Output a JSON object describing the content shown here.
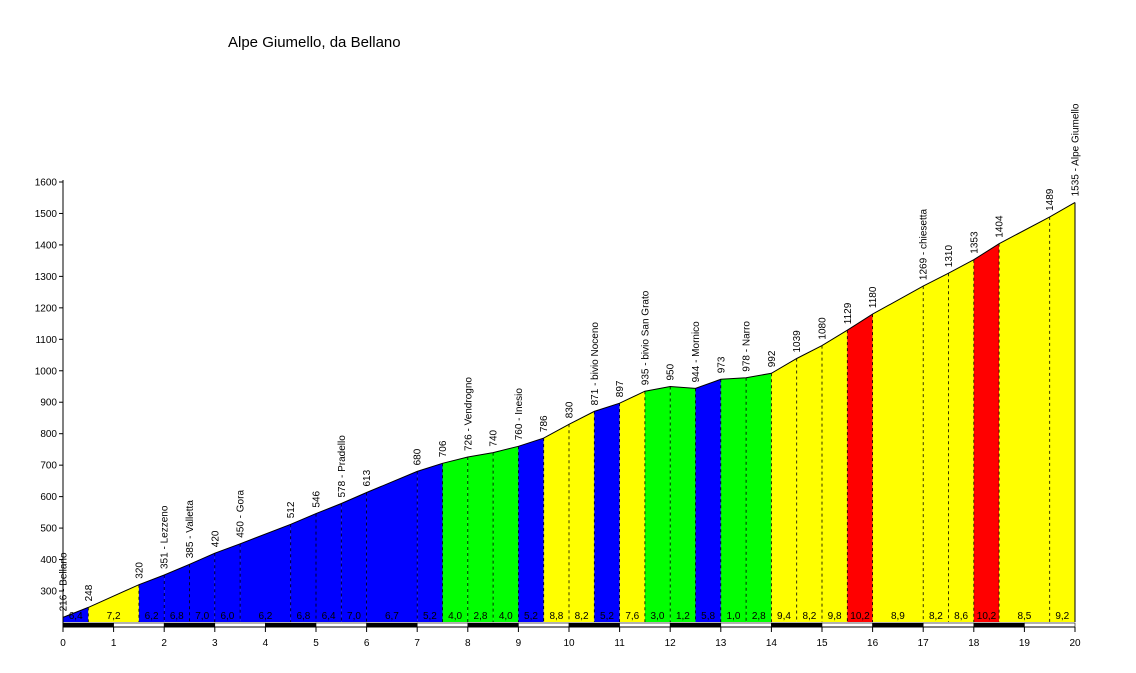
{
  "chart_data": {
    "type": "area",
    "title": "Alpe Giumello, da Bellano",
    "xlabel": "",
    "ylabel": "",
    "xlim": [
      0,
      20
    ],
    "ylim": [
      200,
      1600
    ],
    "x_ticks": [
      0,
      1,
      2,
      3,
      4,
      5,
      6,
      7,
      8,
      9,
      10,
      11,
      12,
      13,
      14,
      15,
      16,
      17,
      18,
      19,
      20
    ],
    "y_ticks": [
      300,
      400,
      500,
      600,
      700,
      800,
      900,
      1000,
      1100,
      1200,
      1300,
      1400,
      1500,
      1600
    ],
    "grid": false,
    "colors": {
      "blue": "#0000ff",
      "yellow": "#ffff00",
      "green": "#00ff00",
      "red": "#ff0000",
      "outline": "#000000"
    },
    "profile": [
      {
        "x": 0,
        "y": 216
      },
      {
        "x": 0.5,
        "y": 248
      },
      {
        "x": 1.5,
        "y": 320
      },
      {
        "x": 2.0,
        "y": 351
      },
      {
        "x": 2.5,
        "y": 385
      },
      {
        "x": 3.0,
        "y": 420
      },
      {
        "x": 3.5,
        "y": 450
      },
      {
        "x": 4.5,
        "y": 512
      },
      {
        "x": 5.0,
        "y": 546
      },
      {
        "x": 5.5,
        "y": 578
      },
      {
        "x": 6.0,
        "y": 613
      },
      {
        "x": 7.0,
        "y": 680
      },
      {
        "x": 7.5,
        "y": 706
      },
      {
        "x": 8.0,
        "y": 726
      },
      {
        "x": 8.5,
        "y": 740
      },
      {
        "x": 9.0,
        "y": 760
      },
      {
        "x": 9.5,
        "y": 786
      },
      {
        "x": 10.0,
        "y": 830
      },
      {
        "x": 10.5,
        "y": 871
      },
      {
        "x": 11.0,
        "y": 897
      },
      {
        "x": 11.5,
        "y": 935
      },
      {
        "x": 12.0,
        "y": 950
      },
      {
        "x": 12.5,
        "y": 944
      },
      {
        "x": 13.0,
        "y": 973
      },
      {
        "x": 13.5,
        "y": 978
      },
      {
        "x": 14.0,
        "y": 992
      },
      {
        "x": 14.5,
        "y": 1039
      },
      {
        "x": 15.0,
        "y": 1080
      },
      {
        "x": 15.5,
        "y": 1129
      },
      {
        "x": 16.0,
        "y": 1180
      },
      {
        "x": 17.0,
        "y": 1269
      },
      {
        "x": 17.5,
        "y": 1310
      },
      {
        "x": 18.0,
        "y": 1353
      },
      {
        "x": 18.5,
        "y": 1404
      },
      {
        "x": 19.5,
        "y": 1489
      },
      {
        "x": 20.0,
        "y": 1535
      }
    ],
    "segments": [
      {
        "x0": 0,
        "x1": 0.5,
        "color": "blue",
        "gradient": "6,4"
      },
      {
        "x0": 0.5,
        "x1": 1.5,
        "color": "yellow",
        "gradient": "7,2"
      },
      {
        "x0": 1.5,
        "x1": 2.0,
        "color": "blue",
        "gradient": "6,2"
      },
      {
        "x0": 2.0,
        "x1": 2.5,
        "color": "blue",
        "gradient": "6,8"
      },
      {
        "x0": 2.5,
        "x1": 3.0,
        "color": "blue",
        "gradient": "7,0"
      },
      {
        "x0": 3.0,
        "x1": 3.5,
        "color": "blue",
        "gradient": "6,0"
      },
      {
        "x0": 3.5,
        "x1": 4.5,
        "color": "blue",
        "gradient": "6,2"
      },
      {
        "x0": 4.5,
        "x1": 5.0,
        "color": "blue",
        "gradient": "6,8"
      },
      {
        "x0": 5.0,
        "x1": 5.5,
        "color": "blue",
        "gradient": "6,4"
      },
      {
        "x0": 5.5,
        "x1": 6.0,
        "color": "blue",
        "gradient": "7,0"
      },
      {
        "x0": 6.0,
        "x1": 7.0,
        "color": "blue",
        "gradient": "6,7"
      },
      {
        "x0": 7.0,
        "x1": 7.5,
        "color": "blue",
        "gradient": "5,2"
      },
      {
        "x0": 7.5,
        "x1": 8.0,
        "color": "green",
        "gradient": "4,0"
      },
      {
        "x0": 8.0,
        "x1": 8.5,
        "color": "green",
        "gradient": "2,8"
      },
      {
        "x0": 8.5,
        "x1": 9.0,
        "color": "green",
        "gradient": "4,0"
      },
      {
        "x0": 9.0,
        "x1": 9.5,
        "color": "blue",
        "gradient": "5,2"
      },
      {
        "x0": 9.5,
        "x1": 10.0,
        "color": "yellow",
        "gradient": "8,8"
      },
      {
        "x0": 10.0,
        "x1": 10.5,
        "color": "yellow",
        "gradient": "8,2"
      },
      {
        "x0": 10.5,
        "x1": 11.0,
        "color": "blue",
        "gradient": "5,2"
      },
      {
        "x0": 11.0,
        "x1": 11.5,
        "color": "yellow",
        "gradient": "7,6"
      },
      {
        "x0": 11.5,
        "x1": 12.0,
        "color": "green",
        "gradient": "3,0"
      },
      {
        "x0": 12.0,
        "x1": 12.5,
        "color": "green",
        "gradient": "1,2"
      },
      {
        "x0": 12.5,
        "x1": 13.0,
        "color": "blue",
        "gradient": "5,8"
      },
      {
        "x0": 13.0,
        "x1": 13.5,
        "color": "green",
        "gradient": "1,0"
      },
      {
        "x0": 13.5,
        "x1": 14.0,
        "color": "green",
        "gradient": "2,8"
      },
      {
        "x0": 14.0,
        "x1": 14.5,
        "color": "yellow",
        "gradient": "9,4"
      },
      {
        "x0": 14.5,
        "x1": 15.0,
        "color": "yellow",
        "gradient": "8,2"
      },
      {
        "x0": 15.0,
        "x1": 15.5,
        "color": "yellow",
        "gradient": "9,8"
      },
      {
        "x0": 15.5,
        "x1": 16.0,
        "color": "red",
        "gradient": "10,2"
      },
      {
        "x0": 16.0,
        "x1": 17.0,
        "color": "yellow",
        "gradient": "8,9"
      },
      {
        "x0": 17.0,
        "x1": 17.5,
        "color": "yellow",
        "gradient": "8,2"
      },
      {
        "x0": 17.5,
        "x1": 18.0,
        "color": "yellow",
        "gradient": "8,6"
      },
      {
        "x0": 18.0,
        "x1": 18.5,
        "color": "red",
        "gradient": "10,2"
      },
      {
        "x0": 18.5,
        "x1": 19.5,
        "color": "yellow",
        "gradient": "8,5"
      },
      {
        "x0": 19.5,
        "x1": 20.0,
        "color": "yellow",
        "gradient": "9,2"
      }
    ],
    "annotations": [
      {
        "x": 0,
        "label": "216 - Bellano"
      },
      {
        "x": 0.5,
        "label": "248"
      },
      {
        "x": 1.5,
        "label": "320"
      },
      {
        "x": 2.0,
        "label": "351 - Lezzeno"
      },
      {
        "x": 2.5,
        "label": "385 - Valletta"
      },
      {
        "x": 3.0,
        "label": "420"
      },
      {
        "x": 3.5,
        "label": "450 - Gora"
      },
      {
        "x": 4.5,
        "label": "512"
      },
      {
        "x": 5.0,
        "label": "546"
      },
      {
        "x": 5.5,
        "label": "578 - Pradello"
      },
      {
        "x": 6.0,
        "label": "613"
      },
      {
        "x": 7.0,
        "label": "680"
      },
      {
        "x": 7.5,
        "label": "706"
      },
      {
        "x": 8.0,
        "label": "726 - Vendrogno"
      },
      {
        "x": 8.5,
        "label": "740"
      },
      {
        "x": 9.0,
        "label": "760 - Inesio"
      },
      {
        "x": 9.5,
        "label": "786"
      },
      {
        "x": 10.0,
        "label": "830"
      },
      {
        "x": 10.5,
        "label": "871 - bivio Noceno"
      },
      {
        "x": 11.0,
        "label": "897"
      },
      {
        "x": 11.5,
        "label": "935 - bivio San Grato"
      },
      {
        "x": 12.0,
        "label": "950"
      },
      {
        "x": 12.5,
        "label": "944 - Mornico"
      },
      {
        "x": 13.0,
        "label": "973"
      },
      {
        "x": 13.5,
        "label": "978 - Narro"
      },
      {
        "x": 14.0,
        "label": "992"
      },
      {
        "x": 14.5,
        "label": "1039"
      },
      {
        "x": 15.0,
        "label": "1080"
      },
      {
        "x": 15.5,
        "label": "1129"
      },
      {
        "x": 16.0,
        "label": "1180"
      },
      {
        "x": 17.0,
        "label": "1269 - chiesetta"
      },
      {
        "x": 17.5,
        "label": "1310"
      },
      {
        "x": 18.0,
        "label": "1353"
      },
      {
        "x": 18.5,
        "label": "1404"
      },
      {
        "x": 19.5,
        "label": "1489"
      },
      {
        "x": 20.0,
        "label": "1535 - Alpe Giumello"
      }
    ]
  }
}
